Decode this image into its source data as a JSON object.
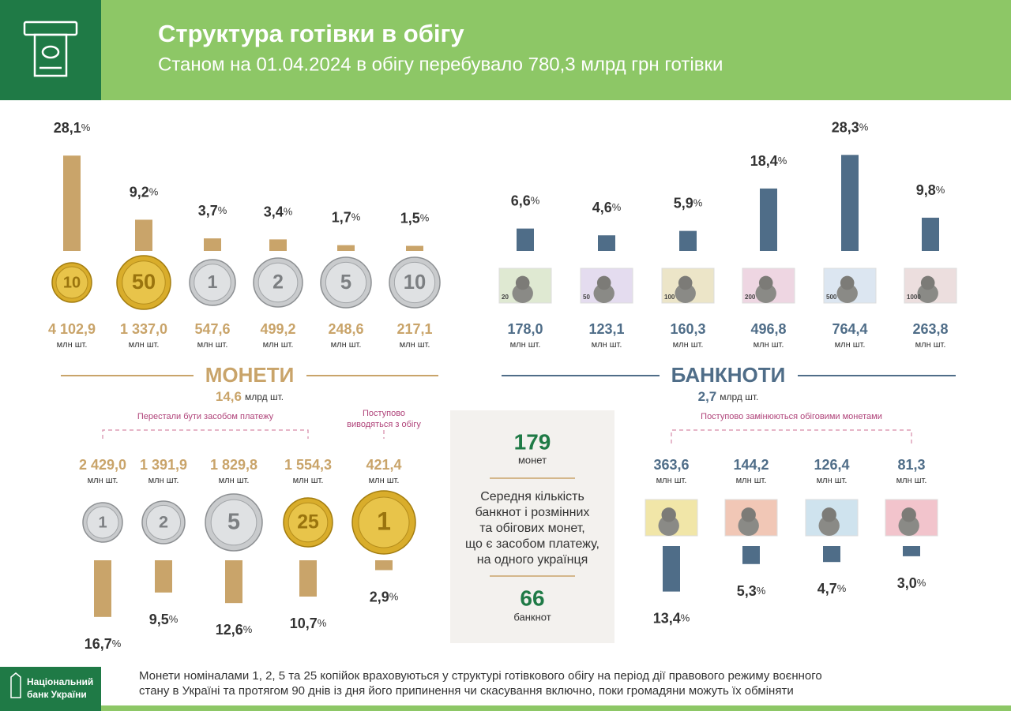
{
  "header": {
    "title": "Структура готівки в обігу",
    "subtitle": "Станом на 01.04.2024 в обігу перебувало 780,3 млрд грн готівки"
  },
  "units": {
    "percent": "%",
    "pieces": "млн шт.",
    "billion_pieces": "млрд шт."
  },
  "coins_top": {
    "faces": [
      "10",
      "50",
      "1",
      "2",
      "5",
      "10"
    ],
    "shares": [
      28.1,
      9.2,
      3.7,
      3.4,
      1.7,
      1.5
    ],
    "share_labels": [
      "28,1",
      "9,2",
      "3,7",
      "3,4",
      "1,7",
      "1,5"
    ],
    "counts": [
      "4 102,9",
      "1 337,0",
      "547,6",
      "499,2",
      "248,6",
      "217,1"
    ]
  },
  "banknotes_top": {
    "faces": [
      "20",
      "50",
      "100",
      "200",
      "500",
      "1000"
    ],
    "shares": [
      6.6,
      4.6,
      5.9,
      18.4,
      28.3,
      9.8
    ],
    "share_labels": [
      "6,6",
      "4,6",
      "5,9",
      "18,4",
      "28,3",
      "9,8"
    ],
    "counts": [
      "178,0",
      "123,1",
      "160,3",
      "496,8",
      "764,4",
      "263,8"
    ]
  },
  "coins_section": {
    "title": "МОНЕТИ",
    "total": "14,6"
  },
  "banknotes_section": {
    "title": "БАНКНОТИ",
    "total": "2,7"
  },
  "coins_bottom": {
    "group_labels": [
      "Перестали бути засобом платежу",
      "Поступово",
      "виводяться з обігу"
    ],
    "faces": [
      "1",
      "2",
      "5",
      "25",
      "1"
    ],
    "counts": [
      "2 429,0",
      "1 391,9",
      "1 829,8",
      "1 554,3",
      "421,4"
    ],
    "shares": [
      16.7,
      9.5,
      12.6,
      10.7,
      2.9
    ],
    "share_labels": [
      "16,7",
      "9,5",
      "12,6",
      "10,7",
      "2,9"
    ]
  },
  "average": {
    "coins": "179",
    "coins_label": "монет",
    "description": [
      "Середня кількість",
      "банкнот і розмінних",
      "та обігових монет,",
      "що є засобом платежу,",
      "на одного українця"
    ],
    "banknotes": "66",
    "banknotes_label": "банкнот"
  },
  "banknotes_bottom": {
    "group_label": "Поступово замінюються обіговими монетами",
    "counts": [
      "363,6",
      "144,2",
      "126,4",
      "81,3"
    ],
    "shares": [
      13.4,
      5.3,
      4.7,
      3.0
    ],
    "share_labels": [
      "13,4",
      "5,3",
      "4,7",
      "3,0"
    ]
  },
  "footer": {
    "logo": [
      "Національний",
      "банк України"
    ],
    "note": [
      "Монети номіналами 1, 2, 5 та 25 копійок враховуються у структурі готівкового обігу на період дії правового режиму воєнного",
      "стану в Україні та протягом 90 днів із дня його припинення чи скасування включно, поки громадяни можуть їх обміняти"
    ]
  }
}
